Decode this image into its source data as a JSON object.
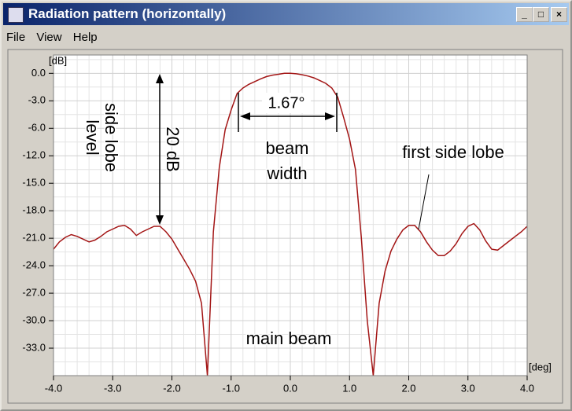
{
  "window": {
    "title": "Radiation pattern (horizontally)",
    "menu": [
      "File",
      "View",
      "Help"
    ]
  },
  "chart_data": {
    "type": "line",
    "ylabel": "[dB]",
    "xlabel": "[deg]",
    "x": [
      -4.0,
      -3.9,
      -3.8,
      -3.7,
      -3.6,
      -3.5,
      -3.4,
      -3.3,
      -3.2,
      -3.1,
      -3.0,
      -2.9,
      -2.8,
      -2.7,
      -2.6,
      -2.5,
      -2.4,
      -2.3,
      -2.2,
      -2.1,
      -2.0,
      -1.9,
      -1.8,
      -1.7,
      -1.6,
      -1.5,
      -1.4,
      -1.3,
      -1.2,
      -1.1,
      -1.0,
      -0.9,
      -0.8,
      -0.7,
      -0.6,
      -0.5,
      -0.4,
      -0.3,
      -0.2,
      -0.1,
      0.0,
      0.1,
      0.2,
      0.3,
      0.4,
      0.5,
      0.6,
      0.7,
      0.8,
      0.9,
      1.0,
      1.1,
      1.2,
      1.3,
      1.4,
      1.5,
      1.6,
      1.7,
      1.8,
      1.9,
      2.0,
      2.1,
      2.2,
      2.3,
      2.4,
      2.5,
      2.6,
      2.7,
      2.8,
      2.9,
      3.0,
      3.1,
      3.2,
      3.3,
      3.4,
      3.5,
      3.6,
      3.7,
      3.8,
      3.9,
      4.0
    ],
    "values": [
      -22.2,
      -21.4,
      -20.9,
      -20.6,
      -20.8,
      -21.1,
      -21.4,
      -21.2,
      -20.8,
      -20.3,
      -20.0,
      -19.7,
      -19.6,
      -20.0,
      -20.7,
      -20.3,
      -20.0,
      -19.7,
      -19.7,
      -20.3,
      -21.1,
      -22.2,
      -23.3,
      -24.4,
      -25.7,
      -28.1,
      -36,
      -20.3,
      -13.3,
      -6.3,
      -4.0,
      -2.2,
      -1.6,
      -1.2,
      -0.9,
      -0.6,
      -0.35,
      -0.2,
      -0.1,
      0,
      0,
      -0.05,
      -0.15,
      -0.3,
      -0.5,
      -0.8,
      -1.1,
      -1.6,
      -2.6,
      -4.8,
      -8.4,
      -13.5,
      -21.0,
      -30.0,
      -36,
      -28.1,
      -24.6,
      -22.4,
      -21.1,
      -20.1,
      -19.6,
      -19.6,
      -20.3,
      -21.4,
      -22.3,
      -22.9,
      -22.9,
      -22.4,
      -21.6,
      -20.5,
      -19.7,
      -19.4,
      -20.1,
      -21.3,
      -22.2,
      -22.3,
      -21.8,
      -21.3,
      -20.8,
      -20.3,
      -19.7
    ],
    "color": "#a31515",
    "xlim": [
      -4,
      4
    ],
    "ylim": [
      -36,
      2
    ],
    "xticks": [
      {
        "value": -4,
        "label": "-4.0"
      },
      {
        "value": -3,
        "label": "-3.0"
      },
      {
        "value": -2,
        "label": "-2.0"
      },
      {
        "value": -1,
        "label": "-1.0"
      },
      {
        "value": 0,
        "label": "0.0"
      },
      {
        "value": 1,
        "label": "1.0"
      },
      {
        "value": 2,
        "label": "2.0"
      },
      {
        "value": 3,
        "label": "3.0"
      },
      {
        "value": 4,
        "label": "4.0"
      }
    ],
    "yticks": [
      {
        "value": 0,
        "label": "0.0"
      },
      {
        "value": -3,
        "label": "-3.0"
      },
      {
        "value": -6,
        "label": "-6.0"
      },
      {
        "value": -12,
        "label": "-12.0"
      },
      {
        "value": -15,
        "label": "-15.0"
      },
      {
        "value": -18,
        "label": "-18.0"
      },
      {
        "value": -21,
        "label": "-21.0"
      },
      {
        "value": -24,
        "label": "-24.0"
      },
      {
        "value": -27,
        "label": "-27.0"
      },
      {
        "value": -30,
        "label": "-30.0"
      },
      {
        "value": -33,
        "label": "-33.0"
      }
    ],
    "grid": true,
    "annotations": {
      "side_lobe_level": [
        "side lobe",
        "level"
      ],
      "level_difference": "20 dB",
      "width_value": "1.67°",
      "beam_width": [
        "beam",
        "width"
      ],
      "first_side_lobe": "first side lobe",
      "main_beam": "main beam"
    }
  }
}
